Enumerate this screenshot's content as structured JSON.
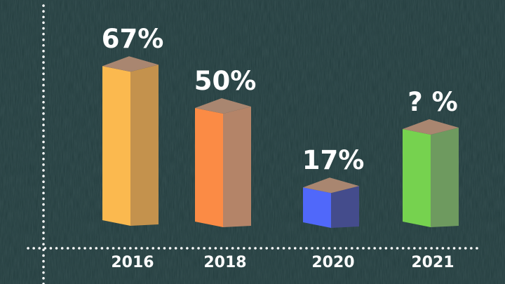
{
  "chart_data": {
    "type": "bar",
    "categories": [
      "2016",
      "2018",
      "2020",
      "2021"
    ],
    "values": [
      67,
      50,
      17,
      null
    ],
    "data_labels": [
      "67%",
      "50%",
      "17%",
      "? %"
    ],
    "bar_colors": [
      "#fbb94f",
      "#fb8b45",
      "#5068fa",
      "#76d24f"
    ],
    "bar_side_colors": [
      "#c4924d",
      "#b48468",
      "#444c8c",
      "#6e9a5f"
    ],
    "bar_top_color": "#a98670",
    "axis_color": "#ffffff",
    "axis_style": "dotted",
    "background_color": "#2b4547",
    "grid": false,
    "legend": "none",
    "title": "",
    "xlabel": "",
    "ylabel": ""
  }
}
